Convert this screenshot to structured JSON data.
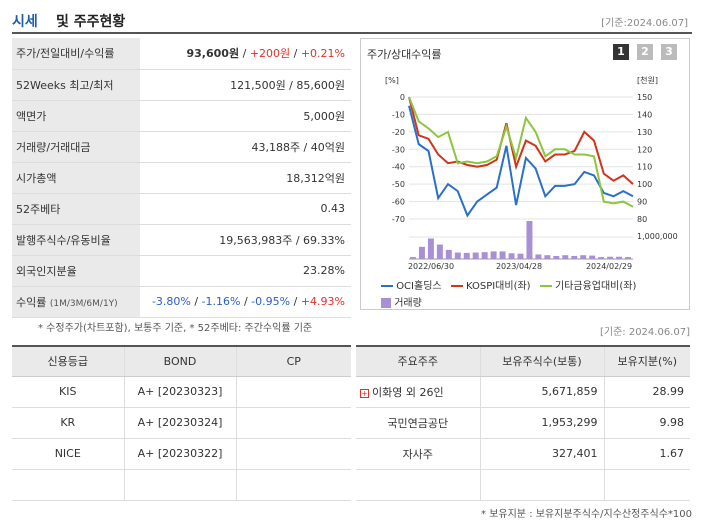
{
  "header": {
    "title_main": "시세",
    "title_sub": "및 주주현황",
    "date": "[기준:2024.06.07]"
  },
  "quote_rows": [
    {
      "label": "주가/전일대비/수익률",
      "price": "93,600원",
      "sep1": " / ",
      "change": "+200원",
      "sep2": " / ",
      "pct": "+0.21%"
    },
    {
      "label": "52Weeks 최고/최저",
      "value": "121,500원 / 85,600원"
    },
    {
      "label": "액면가",
      "value": "5,000원"
    },
    {
      "label": "거래량/거래대금",
      "value": "43,188주 / 40억원"
    },
    {
      "label": "시가총액",
      "value": "18,312억원"
    },
    {
      "label": "52주베타",
      "value": "0.43"
    },
    {
      "label": "발행주식수/유동비율",
      "value": "19,563,983주 / 69.33%"
    },
    {
      "label": "외국인지분율",
      "value": "23.28%"
    },
    {
      "label": "수익률",
      "label_sub": "(1M/3M/6M/1Y)",
      "r1": "-3.80%",
      "r2": "-1.16%",
      "r3": "-0.95%",
      "r4": "+4.93%",
      "sep": "/ "
    }
  ],
  "notes": {
    "note1": "* 수정주가(차트포함), 보통주 기준, * 52주베타: 주간수익률 기준",
    "date2": "[기준: 2024.06.07]",
    "note2": "* 보유지분 : 보유지분주식수/지수산정주식수*100"
  },
  "chart_data": {
    "type": "line",
    "title": "주가/상대수익률",
    "pages": [
      "1",
      "2",
      "3"
    ],
    "ylabel_left": "[%]",
    "ylabel_right": "[천원]",
    "ylim_left": [
      -70,
      0
    ],
    "ylim_right": [
      80,
      150
    ],
    "y_left_ticks": [
      "0",
      "-10",
      "-20",
      "-30",
      "-40",
      "-50",
      "-60",
      "-70"
    ],
    "y_right_ticks": [
      "150",
      "140",
      "130",
      "120",
      "110",
      "100",
      "90",
      "80"
    ],
    "volume_tick": "1,000,000",
    "x_ticks": [
      "2022/06/30",
      "2023/04/28",
      "2024/02/29"
    ],
    "series": [
      {
        "name": "OCI홀딩스",
        "axis": "left",
        "color": "#2a6fc9",
        "values": [
          -5,
          -27,
          -31,
          -58,
          -50,
          -54,
          -68,
          -60,
          -56,
          -52,
          -28,
          -62,
          -35,
          -41,
          -57,
          -51,
          -51,
          -50,
          -43,
          -45,
          -55,
          -57,
          -54,
          -57
        ]
      },
      {
        "name": "KOSPI대비(좌)",
        "axis": "left",
        "color": "#d0341c",
        "values": [
          0,
          -22,
          -24,
          -33,
          -38,
          -37,
          -39,
          -40,
          -39,
          -36,
          -15,
          -40,
          -25,
          -28,
          -37,
          -33,
          -33,
          -31,
          -20,
          -25,
          -44,
          -48,
          -45,
          -50
        ]
      },
      {
        "name": "기타금융업대비(좌)",
        "axis": "left",
        "color": "#8cc63e",
        "values": [
          0,
          -14,
          -18,
          -23,
          -20,
          -38,
          -37,
          -38,
          -37,
          -34,
          -17,
          -35,
          -12,
          -20,
          -34,
          -30,
          -30,
          -33,
          -33,
          -34,
          -60,
          -61,
          -60,
          -63
        ]
      }
    ],
    "volume": [
      0.05,
      0.32,
      0.54,
      0.38,
      0.24,
      0.17,
      0.16,
      0.17,
      0.18,
      0.2,
      0.2,
      0.15,
      0.14,
      1.0,
      0.12,
      0.1,
      0.08,
      0.1,
      0.08,
      0.1,
      0.09,
      0.05,
      0.06,
      0.06,
      0.05
    ],
    "volume_name": "거래량",
    "volume_color": "#a98fd4"
  },
  "credit_table": {
    "headers": [
      "신용등급",
      "BOND",
      "CP"
    ],
    "rows": [
      {
        "agency": "KIS",
        "bond": "A+  [20230323]",
        "cp": ""
      },
      {
        "agency": "KR",
        "bond": "A+  [20230324]",
        "cp": ""
      },
      {
        "agency": "NICE",
        "bond": "A+  [20230322]",
        "cp": ""
      },
      {
        "agency": "",
        "bond": "",
        "cp": ""
      }
    ]
  },
  "holder_table": {
    "headers": [
      "주요주주",
      "보유주식수(보통)",
      "보유지분(%)"
    ],
    "rows": [
      {
        "name": "이화영 외 26인",
        "expand": "+",
        "shares": "5,671,859",
        "pct": "28.99"
      },
      {
        "name": "국민연금공단",
        "shares": "1,953,299",
        "pct": "9.98"
      },
      {
        "name": "자사주",
        "shares": "327,401",
        "pct": "1.67"
      },
      {
        "name": "",
        "shares": "",
        "pct": ""
      }
    ]
  }
}
